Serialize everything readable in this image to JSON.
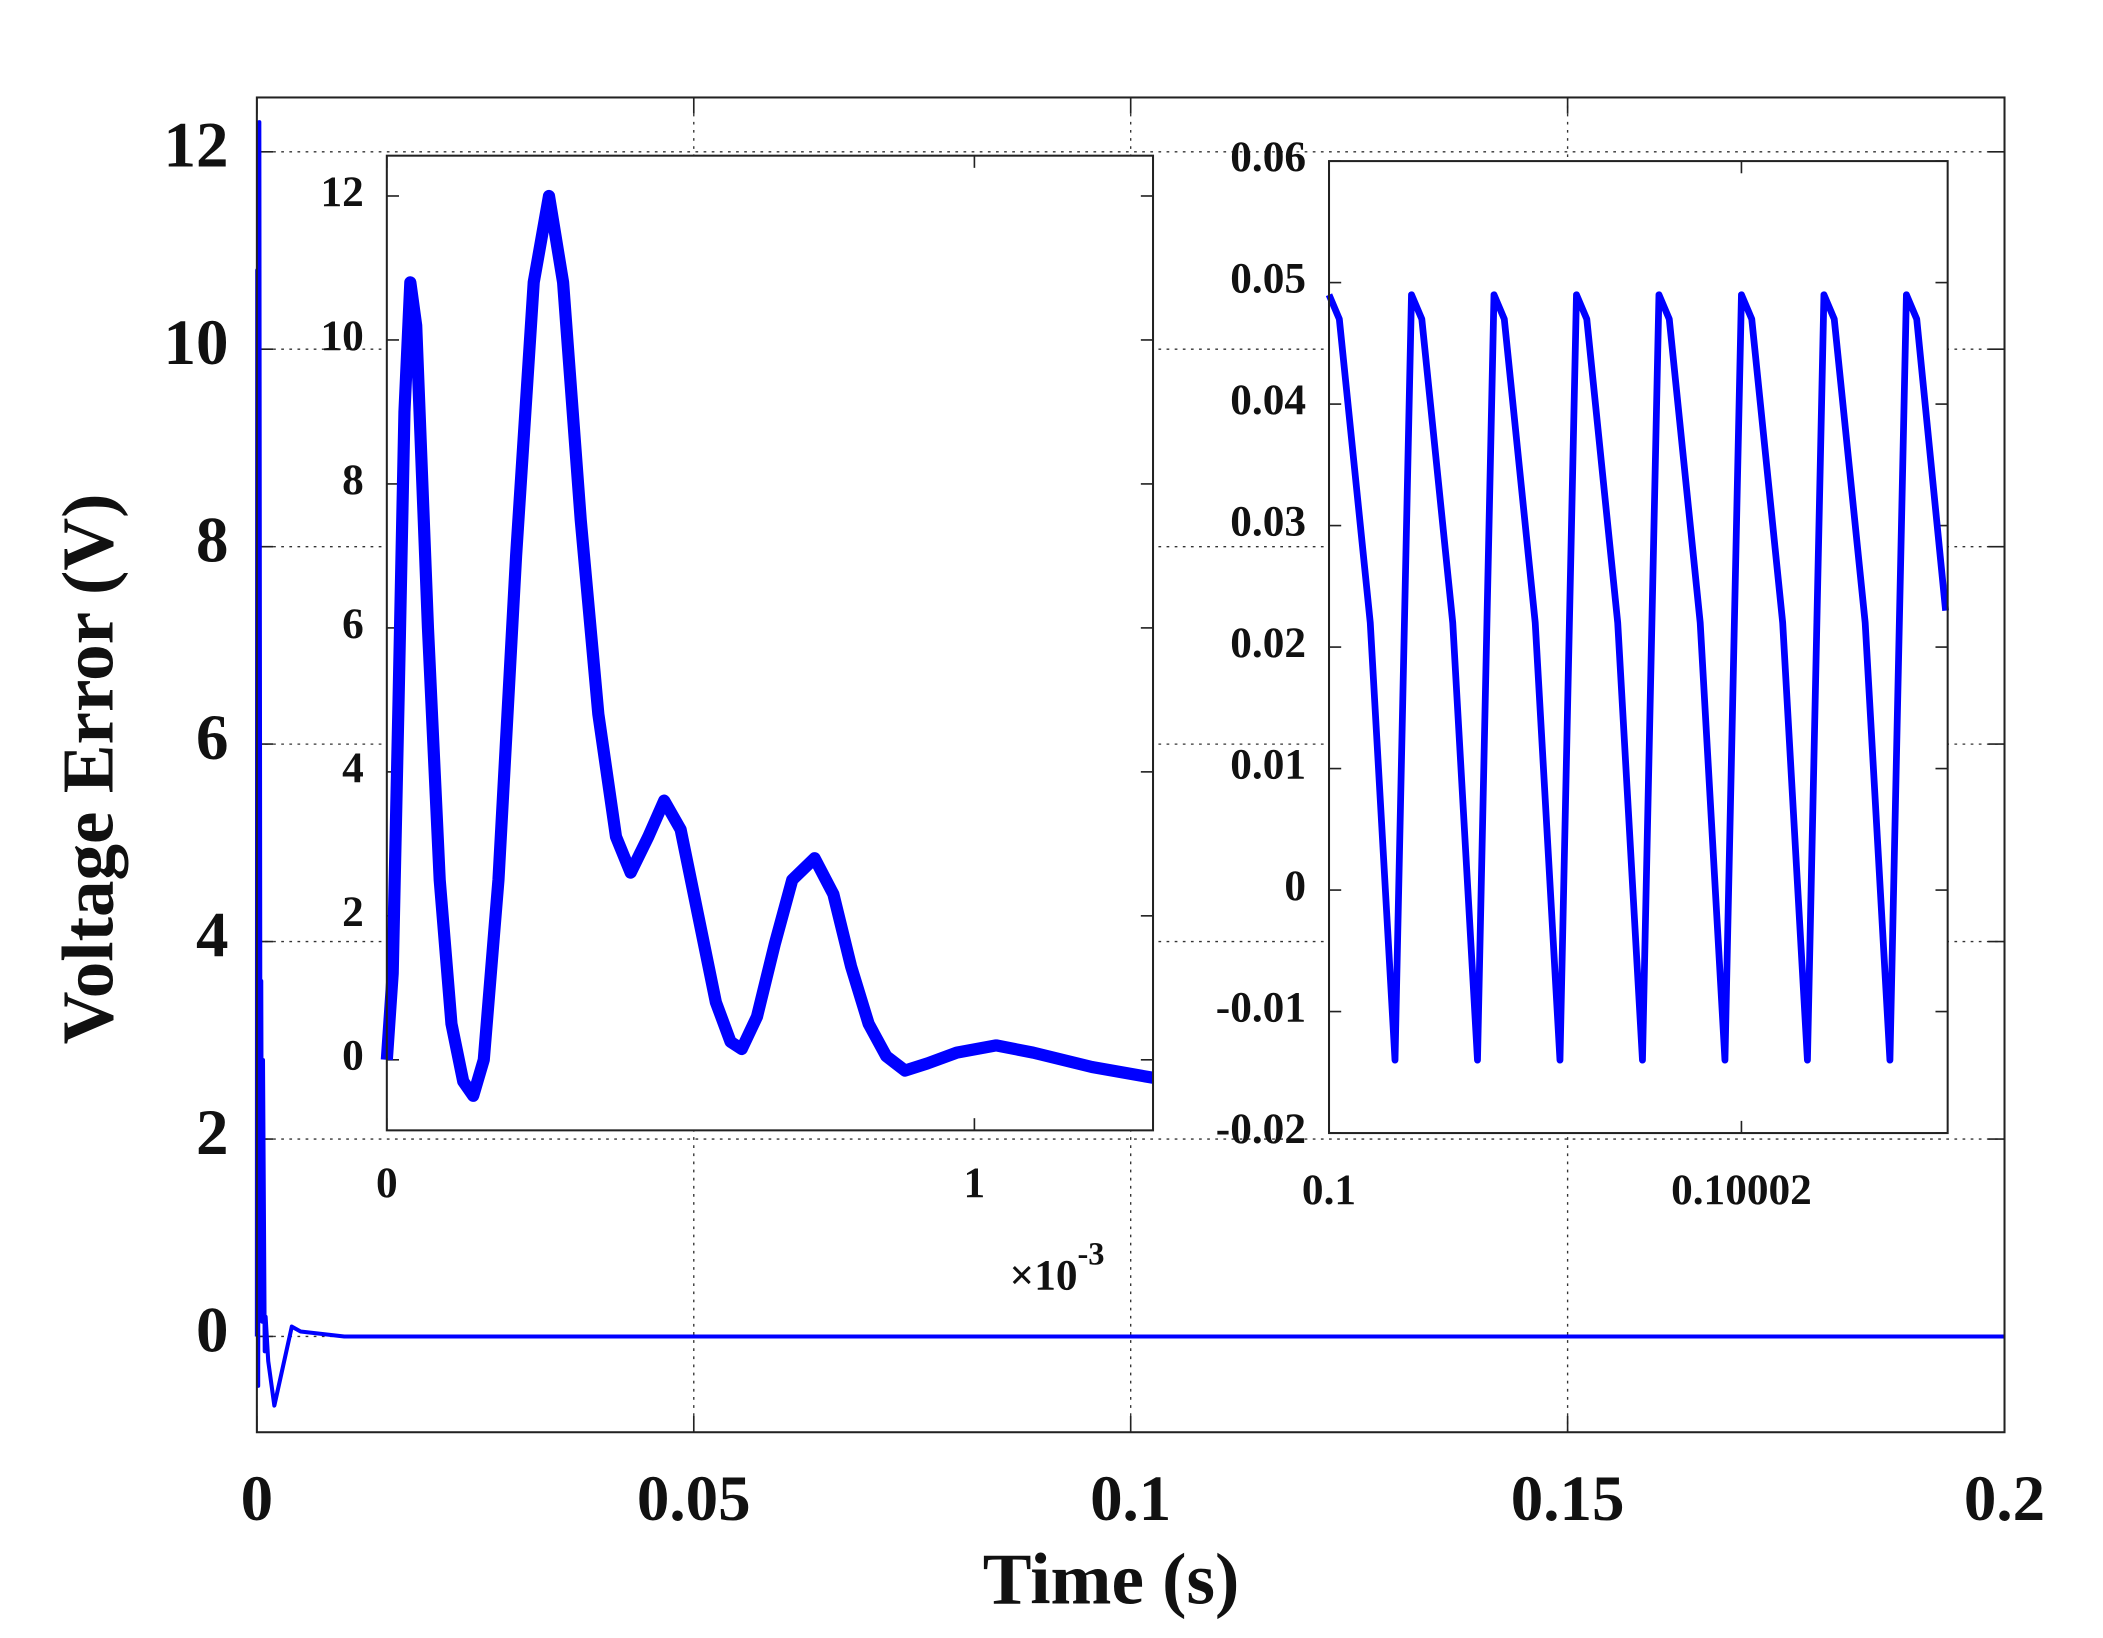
{
  "chart_data": [
    {
      "type": "line",
      "xlabel": "Time (s)",
      "ylabel": "Voltage Error (V)",
      "grid": true,
      "color": "#0000ff",
      "xlim": [
        0,
        0.2
      ],
      "ylim": [
        -0.97,
        12.55
      ],
      "xticks": [
        0,
        0.05,
        0.1,
        0.15,
        0.2
      ],
      "yticks": [
        0,
        2,
        4,
        6,
        8,
        10,
        12
      ],
      "x": [
        0,
        4e-05,
        0.00015,
        0.00028,
        0.0004,
        0.0005,
        0.0006,
        0.0007,
        0.0009,
        0.001,
        0.0013,
        0.002,
        0.003,
        0.004,
        0.005,
        0.01,
        0.2
      ],
      "values": [
        0,
        10.8,
        -0.5,
        12.3,
        2.6,
        3.6,
        0.15,
        2.8,
        -0.15,
        0.2,
        -0.25,
        -0.7,
        -0.3,
        0.1,
        0.05,
        0,
        0
      ]
    },
    {
      "type": "line",
      "grid": false,
      "color": "#0000ff",
      "xlim": [
        0,
        0.001304
      ],
      "ylim": [
        -0.98,
        12.56
      ],
      "xticks": [
        0,
        {
          "value": 0.001,
          "label": "1"
        }
      ],
      "yticks": [
        0,
        2,
        4,
        6,
        8,
        10,
        12
      ],
      "x_multiplier": {
        "base": "×10",
        "exponent": "-3"
      },
      "x": [
        0,
        1e-05,
        2e-05,
        3e-05,
        4e-05,
        5e-05,
        7e-05,
        9e-05,
        0.00011,
        0.00013,
        0.000147,
        0.000165,
        0.00019,
        0.00022,
        0.00025,
        0.000276,
        0.0003,
        0.00033,
        0.00036,
        0.00039,
        0.000415,
        0.000445,
        0.000472,
        0.0005,
        0.00053,
        0.00056,
        0.000585,
        0.000604,
        0.00063,
        0.00066,
        0.00069,
        0.000728,
        0.00076,
        0.00079,
        0.00082,
        0.00085,
        0.000882,
        0.00092,
        0.00097,
        0.001037,
        0.0011,
        0.0012,
        0.001304
      ],
      "values": [
        0,
        1.2,
        5,
        9,
        10.8,
        10.2,
        6,
        2.5,
        0.5,
        -0.3,
        -0.5,
        0,
        2.5,
        7,
        10.8,
        12,
        10.8,
        7.5,
        4.8,
        3.1,
        2.6,
        3.1,
        3.6,
        3.2,
        2,
        0.8,
        0.25,
        0.15,
        0.6,
        1.6,
        2.5,
        2.8,
        2.3,
        1.3,
        0.5,
        0.05,
        -0.15,
        -0.05,
        0.1,
        0.2,
        0.1,
        -0.1,
        -0.25
      ]
    },
    {
      "type": "line",
      "grid": false,
      "color": "#0000ff",
      "xlim": [
        0.1,
        0.10003
      ],
      "ylim": [
        -0.02,
        0.06
      ],
      "xticks": [
        0.1,
        0.10002
      ],
      "yticks": [
        -0.02,
        -0.01,
        0,
        0.01,
        0.02,
        0.03,
        0.04,
        0.05,
        0.06
      ],
      "x": [
        0.1,
        0.1000005,
        0.100002,
        0.1000032,
        0.100004,
        0.1000045,
        0.100006,
        0.1000072,
        0.100008,
        0.1000085,
        0.10001,
        0.1000112,
        0.100012,
        0.1000125,
        0.100014,
        0.1000152,
        0.100016,
        0.1000165,
        0.100018,
        0.1000192,
        0.10002,
        0.1000205,
        0.100022,
        0.1000232,
        0.100024,
        0.1000245,
        0.100026,
        0.1000272,
        0.100028,
        0.1000285,
        0.1000299
      ],
      "values": [
        0.049,
        0.047,
        0.022,
        -0.014,
        0.049,
        0.047,
        0.022,
        -0.014,
        0.049,
        0.047,
        0.022,
        -0.014,
        0.049,
        0.047,
        0.022,
        -0.014,
        0.049,
        0.047,
        0.022,
        -0.014,
        0.049,
        0.047,
        0.022,
        -0.014,
        0.049,
        0.047,
        0.022,
        -0.014,
        0.049,
        0.047,
        0.023
      ]
    }
  ]
}
